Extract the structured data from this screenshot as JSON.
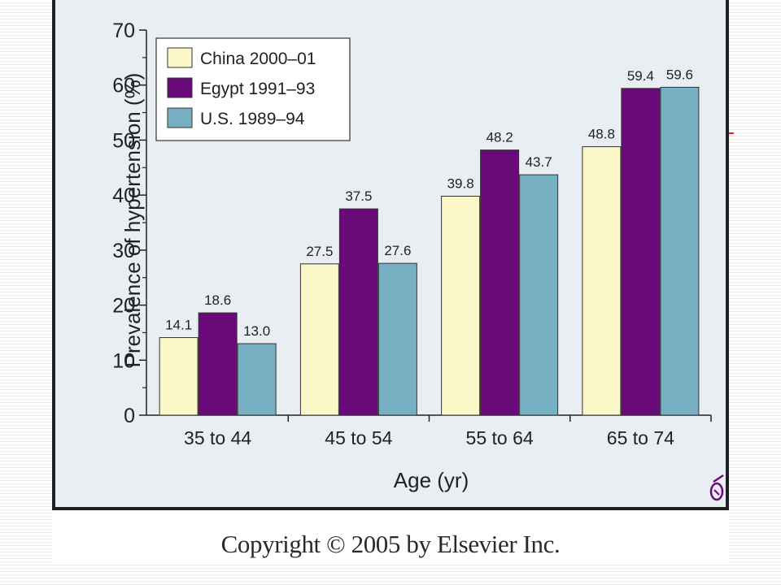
{
  "chart_data": {
    "type": "bar",
    "categories": [
      "35 to 44",
      "45 to 54",
      "55 to 64",
      "65 to 74"
    ],
    "series": [
      {
        "name": "China 2000–01",
        "values": [
          14.1,
          27.5,
          39.8,
          48.8
        ],
        "color": "#fbf7c8"
      },
      {
        "name": "Egypt 1991–93",
        "values": [
          18.6,
          37.5,
          48.2,
          59.4
        ],
        "color": "#6a0a7a"
      },
      {
        "name": "U.S. 1989–94",
        "values": [
          13.0,
          27.6,
          43.7,
          59.6
        ],
        "color": "#76b0c2"
      }
    ],
    "value_labels": [
      [
        "14.1",
        "27.5",
        "39.8",
        "48.8"
      ],
      [
        "18.6",
        "37.5",
        "48.2",
        "59.4"
      ],
      [
        "13.0",
        "27.6",
        "43.7",
        "59.6"
      ]
    ],
    "xlabel": "Age (yr)",
    "ylabel": "Prevalence of hypertension (%)",
    "ylim": [
      0,
      70
    ],
    "yticks": [
      0,
      10,
      20,
      30,
      40,
      50,
      60,
      70
    ],
    "legend_position": "top-left",
    "grid": false
  },
  "footer": {
    "copyright": "Copyright © 2005 by Elsevier Inc."
  },
  "colors": {
    "panel": "#e9eef3",
    "frame": "#1e1f27",
    "logo": "#6a0a7a"
  }
}
